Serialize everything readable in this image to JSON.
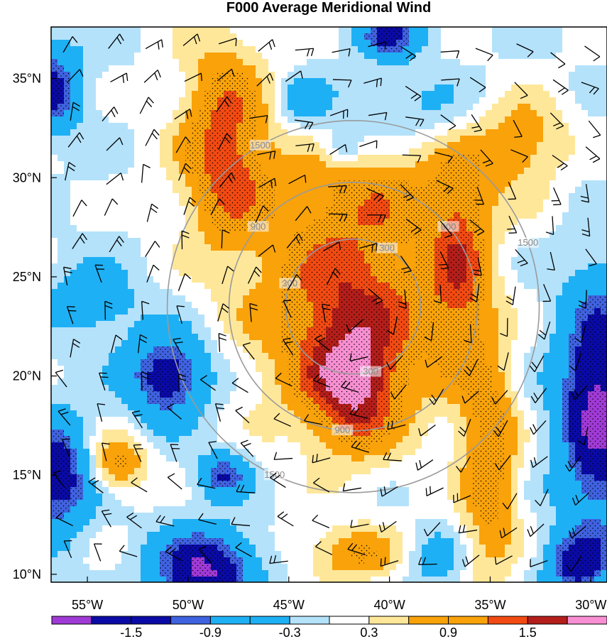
{
  "chart_data": {
    "type": "heatmap",
    "title": "F000 Average Meridional Wind",
    "x_ticks": [
      "55°W",
      "50°W",
      "45°W",
      "40°W",
      "35°W",
      "30°W"
    ],
    "x_values": [
      -55,
      -50,
      -45,
      -40,
      -35,
      -30
    ],
    "y_ticks": [
      "35°N",
      "30°N",
      "25°N",
      "20°N",
      "15°N",
      "10°N"
    ],
    "y_values": [
      35,
      30,
      25,
      20,
      15,
      10
    ],
    "xlim": [
      -56.8,
      -29.2
    ],
    "ylim": [
      9.6,
      37.6
    ],
    "colorbar": {
      "labels": [
        "-1.5",
        "-0.9",
        "-0.3",
        "0.3",
        "0.9",
        "1.5"
      ],
      "label_values": [
        -1.5,
        -0.9,
        -0.3,
        0.3,
        0.9,
        1.5
      ],
      "bins": [
        {
          "min": null,
          "max": -1.8,
          "color": "#a03ad6"
        },
        {
          "min": -1.8,
          "max": -1.5,
          "color": "#0a0aa6"
        },
        {
          "min": -1.5,
          "max": -1.2,
          "color": "#0a0aa6"
        },
        {
          "min": -1.2,
          "max": -0.9,
          "color": "#3f62e0"
        },
        {
          "min": -0.9,
          "max": -0.6,
          "color": "#1eb0f4"
        },
        {
          "min": -0.6,
          "max": -0.3,
          "color": "#1eb0f4"
        },
        {
          "min": -0.3,
          "max": 0.0,
          "color": "#b4e2fb"
        },
        {
          "min": 0.0,
          "max": 0.3,
          "color": "#ffffff"
        },
        {
          "min": 0.3,
          "max": 0.6,
          "color": "#ffe79a"
        },
        {
          "min": 0.6,
          "max": 0.9,
          "color": "#f9a20a"
        },
        {
          "min": 0.9,
          "max": 1.2,
          "color": "#f9a20a"
        },
        {
          "min": 1.2,
          "max": 1.5,
          "color": "#f24a12"
        },
        {
          "min": 1.5,
          "max": 1.8,
          "color": "#b41e1a"
        },
        {
          "min": 1.8,
          "max": null,
          "color": "#f88fd2"
        }
      ]
    },
    "rings": {
      "color": "#9a9a9a",
      "values": [
        300,
        900,
        1500
      ],
      "labels": [
        "300",
        "900",
        "1500"
      ]
    },
    "fields": [
      {
        "lon": -42.0,
        "lat": 23.2,
        "amp": 1.55,
        "sx": 3.2,
        "sy": 4.0
      },
      {
        "lon": -41.8,
        "lat": 19.0,
        "amp": 1.1,
        "sx": 1.6,
        "sy": 2.0
      },
      {
        "lon": -48.2,
        "lat": 31.8,
        "amp": 1.35,
        "sx": 1.6,
        "sy": 3.8
      },
      {
        "lon": -36.5,
        "lat": 25.5,
        "amp": 1.1,
        "sx": 1.1,
        "sy": 3.8
      },
      {
        "lon": -35.0,
        "lat": 15.5,
        "amp": 1.15,
        "sx": 1.0,
        "sy": 4.2
      },
      {
        "lon": -53.5,
        "lat": 15.6,
        "amp": 1.05,
        "sx": 1.0,
        "sy": 1.0
      },
      {
        "lon": -41.8,
        "lat": 11.0,
        "amp": 0.9,
        "sx": 1.8,
        "sy": 1.0
      },
      {
        "lon": -33.5,
        "lat": 32.0,
        "amp": 0.85,
        "sx": 1.6,
        "sy": 1.6
      },
      {
        "lon": -40.5,
        "lat": 29.5,
        "amp": 0.6,
        "sx": 4.5,
        "sy": 1.8
      },
      {
        "lon": -51.0,
        "lat": 20.0,
        "amp": -1.6,
        "sx": 1.4,
        "sy": 1.5
      },
      {
        "lon": -56.5,
        "lat": 15.0,
        "amp": -1.6,
        "sx": 1.2,
        "sy": 2.0
      },
      {
        "lon": -49.2,
        "lat": 10.2,
        "amp": -1.9,
        "sx": 1.7,
        "sy": 1.4
      },
      {
        "lon": -29.6,
        "lat": 18.5,
        "amp": -2.0,
        "sx": 1.4,
        "sy": 4.2
      },
      {
        "lon": -30.7,
        "lat": 10.5,
        "amp": -1.4,
        "sx": 1.1,
        "sy": 1.1
      },
      {
        "lon": -56.8,
        "lat": 34.5,
        "amp": -1.4,
        "sx": 1.1,
        "sy": 1.5
      },
      {
        "lon": -54.8,
        "lat": 23.8,
        "amp": -0.7,
        "sx": 1.6,
        "sy": 1.3
      },
      {
        "lon": -48.2,
        "lat": 15.0,
        "amp": -1.2,
        "sx": 0.9,
        "sy": 0.8
      },
      {
        "lon": -40.0,
        "lat": 37.2,
        "amp": -1.3,
        "sx": 1.1,
        "sy": 0.8
      },
      {
        "lon": -44.2,
        "lat": 33.8,
        "amp": -0.7,
        "sx": 0.9,
        "sy": 0.9
      },
      {
        "lon": -42.3,
        "lat": 31.5,
        "amp": -0.7,
        "sx": 0.7,
        "sy": 0.7
      },
      {
        "lon": -37.8,
        "lat": 10.8,
        "amp": -0.6,
        "sx": 1.0,
        "sy": 1.0
      },
      {
        "lon": -38.5,
        "lat": 33.5,
        "amp": -0.4,
        "sx": 2.5,
        "sy": 1.3
      }
    ]
  }
}
